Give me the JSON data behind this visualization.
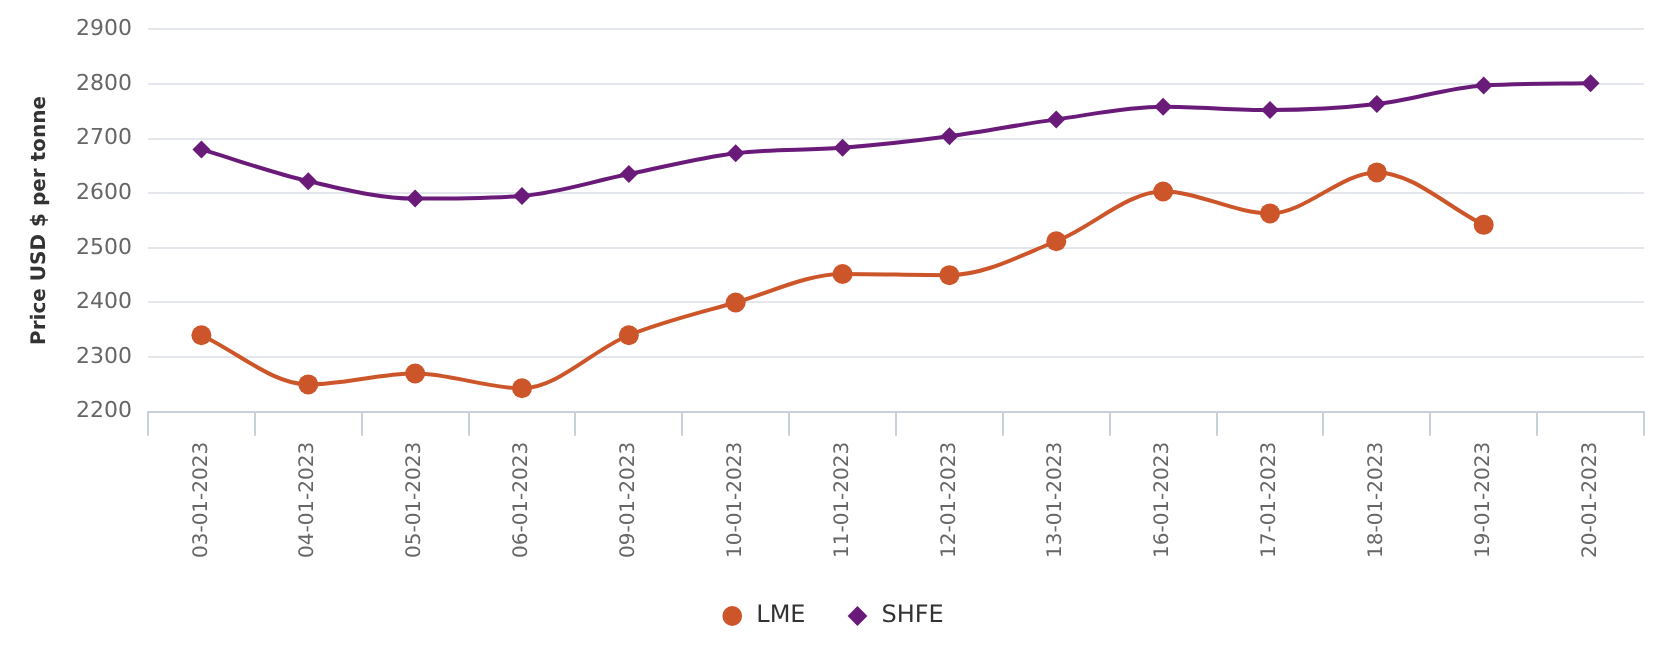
{
  "chart_data": {
    "type": "line",
    "ylabel": "Price USD $ per tonne",
    "categories": [
      "03-01-2023",
      "04-01-2023",
      "05-01-2023",
      "06-01-2023",
      "09-01-2023",
      "10-01-2023",
      "11-01-2023",
      "12-01-2023",
      "13-01-2023",
      "16-01-2023",
      "17-01-2023",
      "18-01-2023",
      "19-01-2023",
      "20-01-2023"
    ],
    "series": [
      {
        "name": "LME",
        "color": "#cc5529",
        "marker": "circle",
        "values": [
          2340,
          2250,
          2270,
          2243,
          2340,
          2400,
          2452,
          2450,
          2512,
          2603,
          2563,
          2638,
          2542,
          null
        ]
      },
      {
        "name": "SHFE",
        "color": "#6a1b7a",
        "marker": "diamond",
        "values": [
          2680,
          2622,
          2590,
          2595,
          2635,
          2673,
          2683,
          2704,
          2735,
          2758,
          2752,
          2763,
          2797,
          2801
        ]
      }
    ],
    "ylim": [
      2200,
      2900
    ],
    "yticks": [
      2200,
      2300,
      2400,
      2500,
      2600,
      2700,
      2800,
      2900
    ],
    "grid": "y",
    "legend": "bottom"
  }
}
